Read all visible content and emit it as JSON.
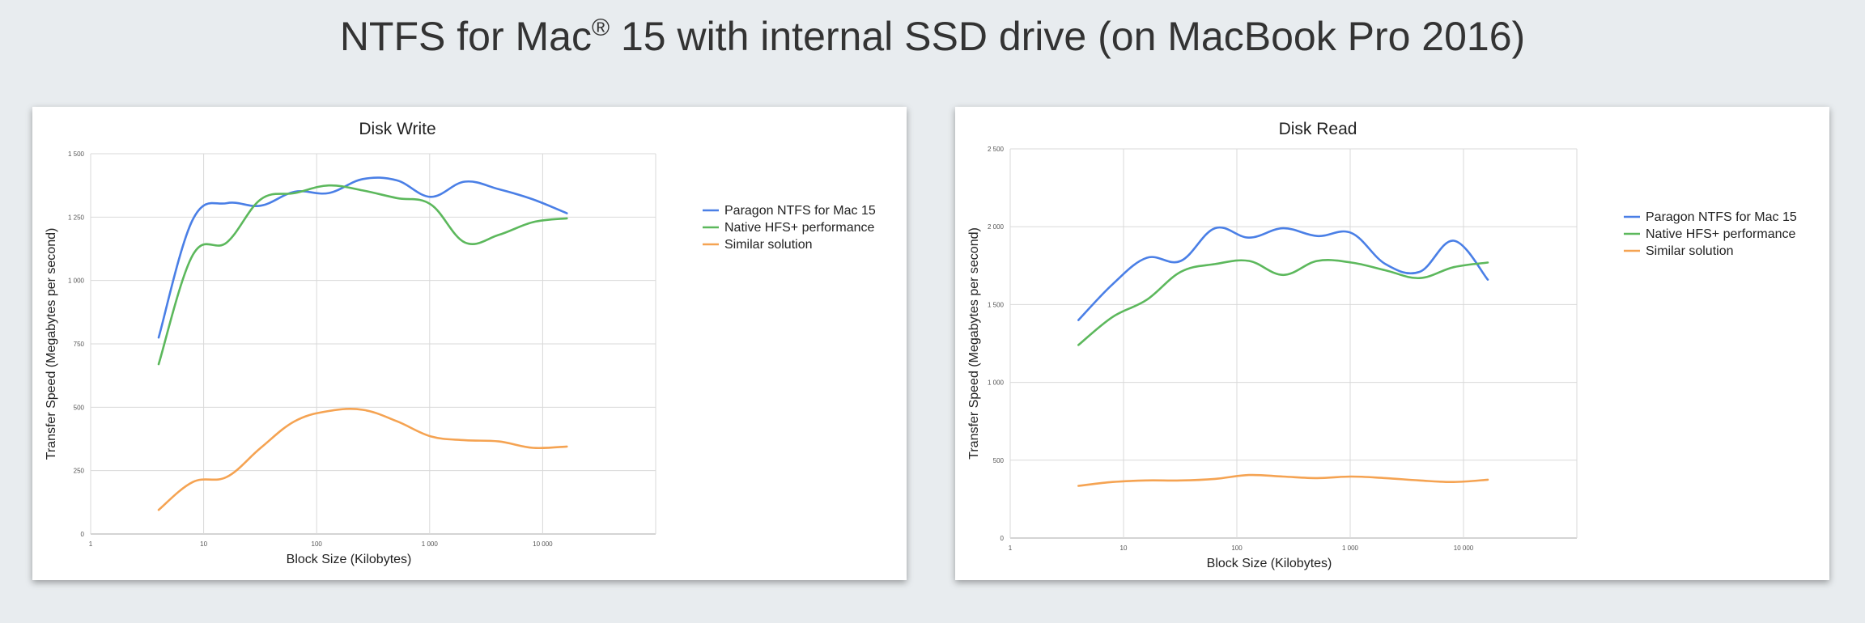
{
  "page": {
    "title_main": "NTFS for Mac",
    "title_reg": "®",
    "title_rest": " 15 with internal SSD drive (on MacBook Pro 2016)"
  },
  "chart_data": [
    {
      "type": "line",
      "title": "Disk Write",
      "xlabel": "Block Size (Kilobytes)",
      "ylabel": "Transfer Speed (Megabytes per second)",
      "x_scale": "log",
      "xlim": [
        1,
        100000
      ],
      "ylim": [
        0,
        1500
      ],
      "x_ticks": [
        1,
        10,
        100,
        1000,
        10000
      ],
      "x_tick_labels": [
        "1",
        "10",
        "100",
        "1 000",
        "10 000"
      ],
      "y_ticks": [
        0,
        250,
        500,
        750,
        1000,
        1250,
        1500
      ],
      "y_tick_labels": [
        "0",
        "250",
        "500",
        "750",
        "1 000",
        "1 250",
        "1 500"
      ],
      "grid": true,
      "legend_position": "right",
      "x": [
        4,
        8,
        16,
        32,
        64,
        128,
        256,
        512,
        1024,
        2048,
        4096,
        8192,
        16384
      ],
      "series": [
        {
          "name": "Paragon NTFS for Mac 15",
          "color": "#4a7fe6",
          "values": [
            775,
            1240,
            1305,
            1295,
            1350,
            1345,
            1400,
            1395,
            1330,
            1390,
            1360,
            1320,
            1265
          ]
        },
        {
          "name": "Native HFS+ performance",
          "color": "#5cb85c",
          "values": [
            670,
            1100,
            1150,
            1320,
            1345,
            1375,
            1355,
            1325,
            1300,
            1150,
            1180,
            1230,
            1245
          ]
        },
        {
          "name": "Similar solution",
          "color": "#f5a352",
          "values": [
            95,
            205,
            225,
            340,
            445,
            485,
            490,
            445,
            385,
            370,
            365,
            340,
            345
          ]
        }
      ]
    },
    {
      "type": "line",
      "title": "Disk Read",
      "xlabel": "Block Size (Kilobytes)",
      "ylabel": "Transfer Speed (Megabytes per second)",
      "x_scale": "log",
      "xlim": [
        1,
        100000
      ],
      "ylim": [
        0,
        2500
      ],
      "x_ticks": [
        1,
        10,
        100,
        1000,
        10000
      ],
      "x_tick_labels": [
        "1",
        "10",
        "100",
        "1 000",
        "10 000"
      ],
      "y_ticks": [
        0,
        500,
        1000,
        1500,
        2000,
        2500
      ],
      "y_tick_labels": [
        "0",
        "500",
        "1 000",
        "1 500",
        "2 000",
        "2 500"
      ],
      "grid": true,
      "legend_position": "right",
      "x": [
        4,
        8,
        16,
        32,
        64,
        128,
        256,
        512,
        1024,
        2048,
        4096,
        8192,
        16384
      ],
      "series": [
        {
          "name": "Paragon NTFS for Mac 15",
          "color": "#4a7fe6",
          "values": [
            1400,
            1630,
            1800,
            1780,
            1990,
            1930,
            1990,
            1940,
            1960,
            1760,
            1710,
            1910,
            1660
          ]
        },
        {
          "name": "Native HFS+ performance",
          "color": "#5cb85c",
          "values": [
            1240,
            1420,
            1530,
            1710,
            1760,
            1780,
            1690,
            1780,
            1770,
            1720,
            1670,
            1740,
            1770
          ]
        },
        {
          "name": "Similar solution",
          "color": "#f5a352",
          "values": [
            335,
            360,
            370,
            370,
            380,
            405,
            395,
            385,
            395,
            385,
            370,
            360,
            375
          ]
        }
      ]
    }
  ]
}
